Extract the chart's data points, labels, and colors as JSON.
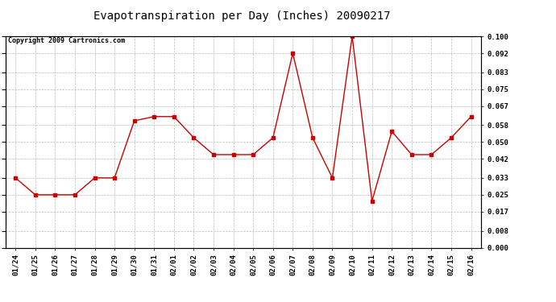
{
  "title": "Evapotranspiration per Day (Inches) 20090217",
  "copyright": "Copyright 2009 Cartronics.com",
  "x_labels": [
    "01/24",
    "01/25",
    "01/26",
    "01/27",
    "01/28",
    "01/29",
    "01/30",
    "01/31",
    "02/01",
    "02/02",
    "02/03",
    "02/04",
    "02/05",
    "02/06",
    "02/07",
    "02/08",
    "02/09",
    "02/10",
    "02/11",
    "02/12",
    "02/13",
    "02/14",
    "02/15",
    "02/16"
  ],
  "y_values": [
    0.033,
    0.025,
    0.025,
    0.025,
    0.033,
    0.033,
    0.06,
    0.062,
    0.062,
    0.052,
    0.044,
    0.044,
    0.044,
    0.052,
    0.092,
    0.052,
    0.033,
    0.1,
    0.022,
    0.055,
    0.044,
    0.044,
    0.052,
    0.062
  ],
  "line_color": "#cc0000",
  "marker": "s",
  "marker_size": 3,
  "ylim": [
    0.0,
    0.1
  ],
  "yticks": [
    0.0,
    0.008,
    0.017,
    0.025,
    0.033,
    0.042,
    0.05,
    0.058,
    0.067,
    0.075,
    0.083,
    0.092,
    0.1
  ],
  "bg_color": "#ffffff",
  "grid_color": "#bbbbbb",
  "title_fontsize": 10,
  "copyright_fontsize": 6,
  "tick_fontsize": 6.5,
  "tick_fontweight": "bold"
}
